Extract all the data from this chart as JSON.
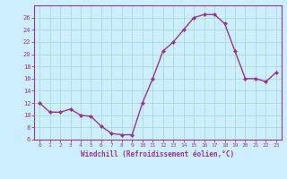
{
  "xlabel": "Windchill (Refroidissement éolien,°C)",
  "x_values": [
    0,
    1,
    2,
    3,
    4,
    5,
    6,
    7,
    8,
    9,
    10,
    11,
    12,
    13,
    14,
    15,
    16,
    17,
    18,
    19,
    20,
    21,
    22,
    23
  ],
  "y_values": [
    12,
    10.5,
    10.5,
    11,
    10,
    9.8,
    8.2,
    7,
    6.8,
    6.8,
    12,
    16,
    20.5,
    22,
    24,
    26,
    26.5,
    26.5,
    25,
    20.5,
    16,
    16,
    15.5,
    17
  ],
  "line_color": "#993399",
  "marker": "D",
  "marker_size": 2,
  "bg_color": "#cceeff",
  "grid_color": "#aaddcc",
  "ylim": [
    6,
    28
  ],
  "yticks": [
    6,
    8,
    10,
    12,
    14,
    16,
    18,
    20,
    22,
    24,
    26
  ],
  "xlim": [
    -0.5,
    23.5
  ],
  "tick_color": "#993399",
  "xlabel_color": "#993399"
}
